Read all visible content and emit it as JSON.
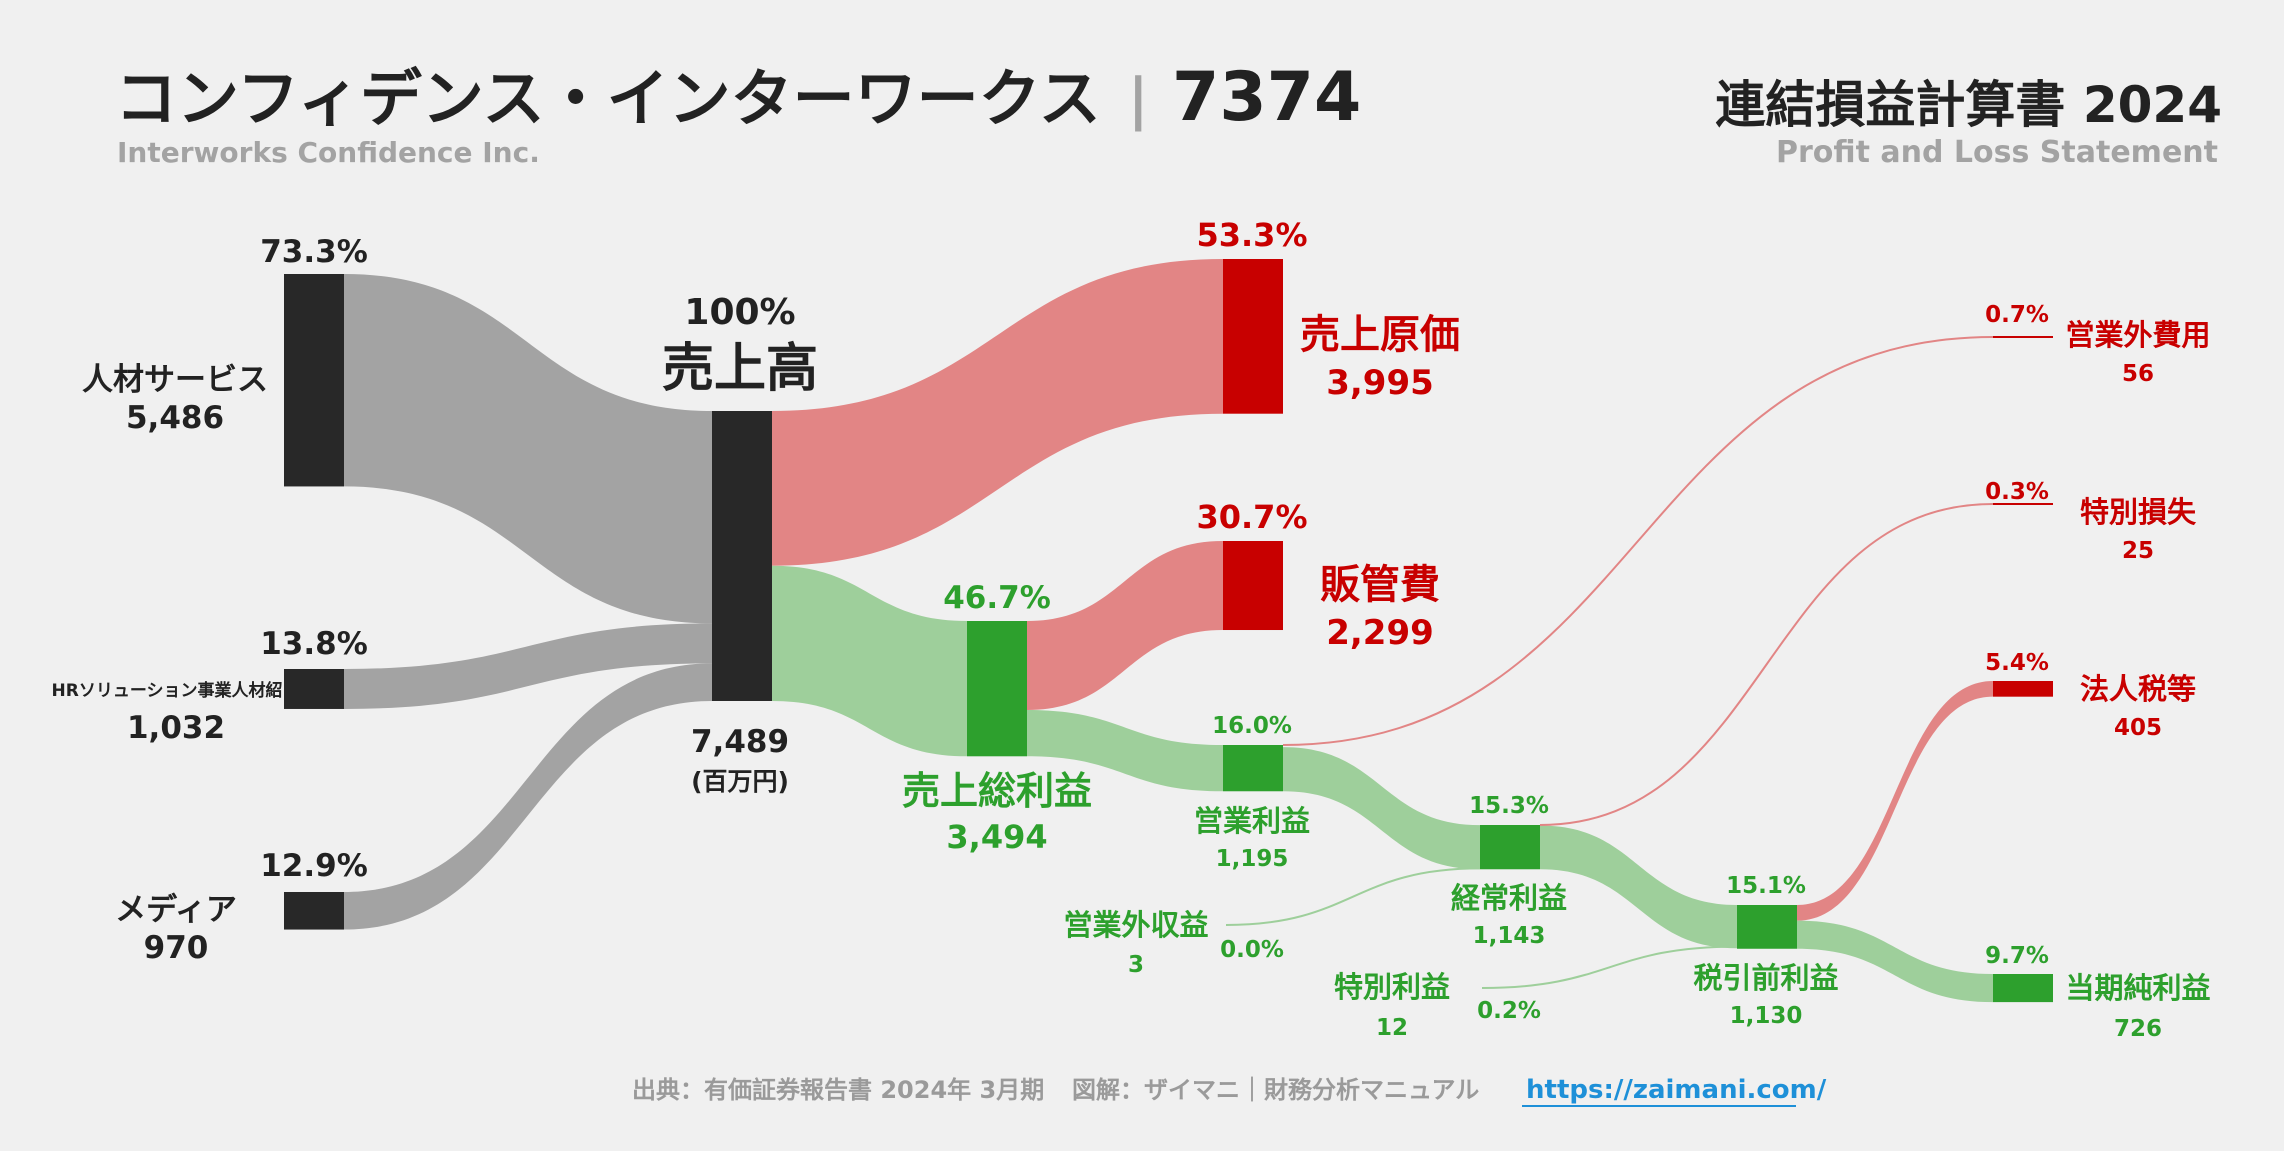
{
  "header": {
    "company_ja": "コンフィデンス・インターワークス",
    "separator": "|",
    "ticker": "7374",
    "company_en": "Interworks Confidence Inc.",
    "statement_ja": "連結損益計算書 2024",
    "statement_en": "Profit and Loss Statement"
  },
  "footer": {
    "source": "出典：有価証券報告書 2024年 3月期",
    "credit": "図解：ザイマニ｜財務分析マニュアル",
    "url": "https://zaimani.com/"
  },
  "colors": {
    "dark": "#282828",
    "gray_flow": "#a3a3a3",
    "red": "#c80000",
    "red_flow": "#e28585",
    "green": "#2da02d",
    "green_flow": "#9ecf9b",
    "background": "#f0f0f0"
  },
  "chart_data": {
    "type": "sankey",
    "unit": "(百万円)",
    "nodes": [
      {
        "id": "jinzai",
        "name": "人材サービス",
        "value": 5486,
        "value_label": "5,486",
        "pct": "73.3%"
      },
      {
        "id": "hr",
        "name": "HRソリューション事業人材紹",
        "value": 1032,
        "value_label": "1,032",
        "pct": "13.8%"
      },
      {
        "id": "media",
        "name": "メディア",
        "value": 970,
        "value_label": "970",
        "pct": "12.9%"
      },
      {
        "id": "revenue",
        "name": "売上高",
        "value": 7489,
        "value_label": "7,489",
        "pct": "100%"
      },
      {
        "id": "cogs",
        "name": "売上原価",
        "value": 3995,
        "value_label": "3,995",
        "pct": "53.3%"
      },
      {
        "id": "gross",
        "name": "売上総利益",
        "value": 3494,
        "value_label": "3,494",
        "pct": "46.7%"
      },
      {
        "id": "sga",
        "name": "販管費",
        "value": 2299,
        "value_label": "2,299",
        "pct": "30.7%"
      },
      {
        "id": "op",
        "name": "営業利益",
        "value": 1195,
        "value_label": "1,195",
        "pct": "16.0%"
      },
      {
        "id": "nonop_inc",
        "name": "営業外収益",
        "value": 3,
        "value_label": "3",
        "pct": "0.0%"
      },
      {
        "id": "nonop_exp",
        "name": "営業外費用",
        "value": 56,
        "value_label": "56",
        "pct": "0.7%"
      },
      {
        "id": "ordinary",
        "name": "経常利益",
        "value": 1143,
        "value_label": "1,143",
        "pct": "15.3%"
      },
      {
        "id": "ext_gain",
        "name": "特別利益",
        "value": 12,
        "value_label": "12",
        "pct": "0.2%"
      },
      {
        "id": "ext_loss",
        "name": "特別損失",
        "value": 25,
        "value_label": "25",
        "pct": "0.3%"
      },
      {
        "id": "pretax",
        "name": "税引前利益",
        "value": 1130,
        "value_label": "1,130",
        "pct": "15.1%"
      },
      {
        "id": "tax",
        "name": "法人税等",
        "value": 405,
        "value_label": "405",
        "pct": "5.4%"
      },
      {
        "id": "net",
        "name": "当期純利益",
        "value": 726,
        "value_label": "726",
        "pct": "9.7%"
      }
    ],
    "links": [
      {
        "source": "jinzai",
        "target": "revenue",
        "value": 5486
      },
      {
        "source": "hr",
        "target": "revenue",
        "value": 1032
      },
      {
        "source": "media",
        "target": "revenue",
        "value": 970
      },
      {
        "source": "revenue",
        "target": "cogs",
        "value": 3995
      },
      {
        "source": "revenue",
        "target": "gross",
        "value": 3494
      },
      {
        "source": "gross",
        "target": "sga",
        "value": 2299
      },
      {
        "source": "gross",
        "target": "op",
        "value": 1195
      },
      {
        "source": "op",
        "target": "nonop_exp",
        "value": 56
      },
      {
        "source": "op",
        "target": "ordinary",
        "value": 1143
      },
      {
        "source": "nonop_inc",
        "target": "ordinary",
        "value": 3
      },
      {
        "source": "ordinary",
        "target": "ext_loss",
        "value": 25
      },
      {
        "source": "ordinary",
        "target": "pretax",
        "value": 1130
      },
      {
        "source": "ext_gain",
        "target": "pretax",
        "value": 12
      },
      {
        "source": "pretax",
        "target": "tax",
        "value": 405
      },
      {
        "source": "pretax",
        "target": "net",
        "value": 726
      }
    ]
  }
}
